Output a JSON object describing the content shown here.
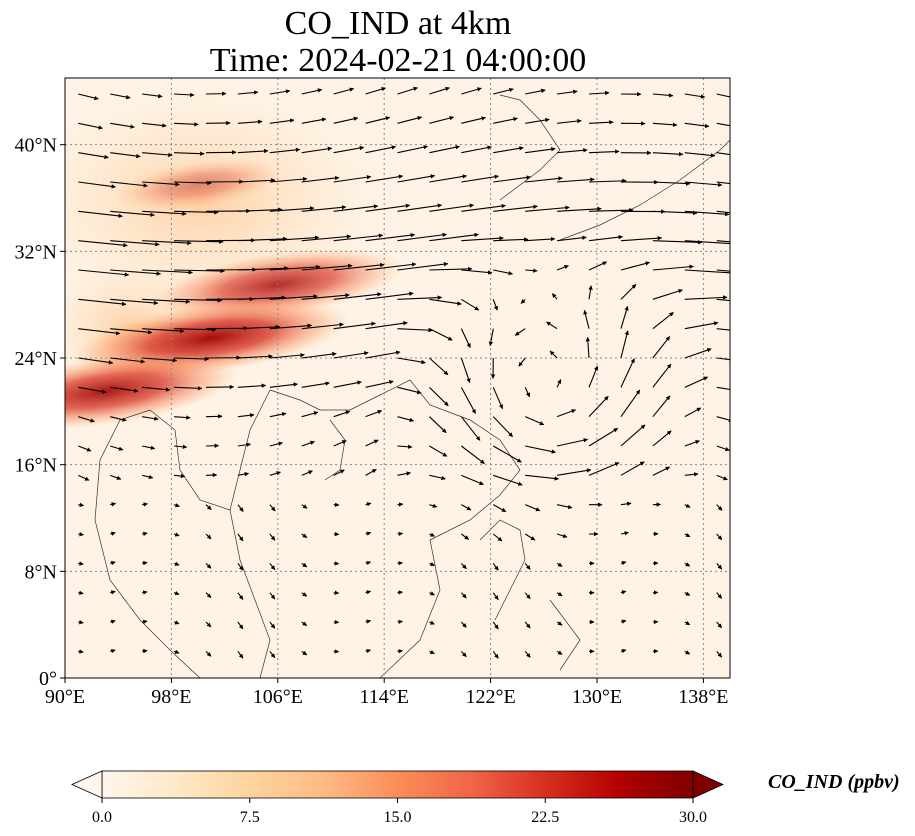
{
  "title_line1": "CO_IND at 4km",
  "title_line2": "Time: 2024-02-21 04:00:00",
  "map": {
    "lon_range": [
      90,
      140
    ],
    "lat_range": [
      0,
      45
    ],
    "lon_ticks": [
      "90°E",
      "98°E",
      "106°E",
      "114°E",
      "122°E",
      "130°E",
      "138°E"
    ],
    "lon_tick_values": [
      90,
      98,
      106,
      114,
      122,
      130,
      138
    ],
    "lat_ticks": [
      "0°",
      "8°N",
      "16°N",
      "24°N",
      "32°N",
      "40°N"
    ],
    "lat_tick_values": [
      0,
      8,
      16,
      24,
      32,
      40
    ],
    "gridlines": true,
    "vector_field": "wind arrows",
    "colormap": "OrRd"
  },
  "colorbar": {
    "label": "CO_IND (ppbv)",
    "min": 0.0,
    "max": 30.0,
    "ticks": [
      "0.0",
      "7.5",
      "15.0",
      "22.5",
      "30.0"
    ],
    "tick_values": [
      0,
      7.5,
      15,
      22.5,
      30
    ],
    "extend": "both",
    "colors": [
      "#fff7ec",
      "#fee8c8",
      "#fdd49e",
      "#fdbb84",
      "#fc8d59",
      "#ef6548",
      "#d7301f",
      "#b30000",
      "#7f0000"
    ]
  },
  "plumes": [
    {
      "name": "north china plume",
      "lon": 100,
      "lat": 37,
      "intensity": 0.4
    },
    {
      "name": "sichuan plume",
      "lon": 106,
      "lat": 29.5,
      "intensity": 0.85
    },
    {
      "name": "south china plume",
      "lon": 101,
      "lat": 25.5,
      "intensity": 1.0
    },
    {
      "name": "indochina plume",
      "lon": 93,
      "lat": 21.5,
      "intensity": 0.95
    }
  ]
}
